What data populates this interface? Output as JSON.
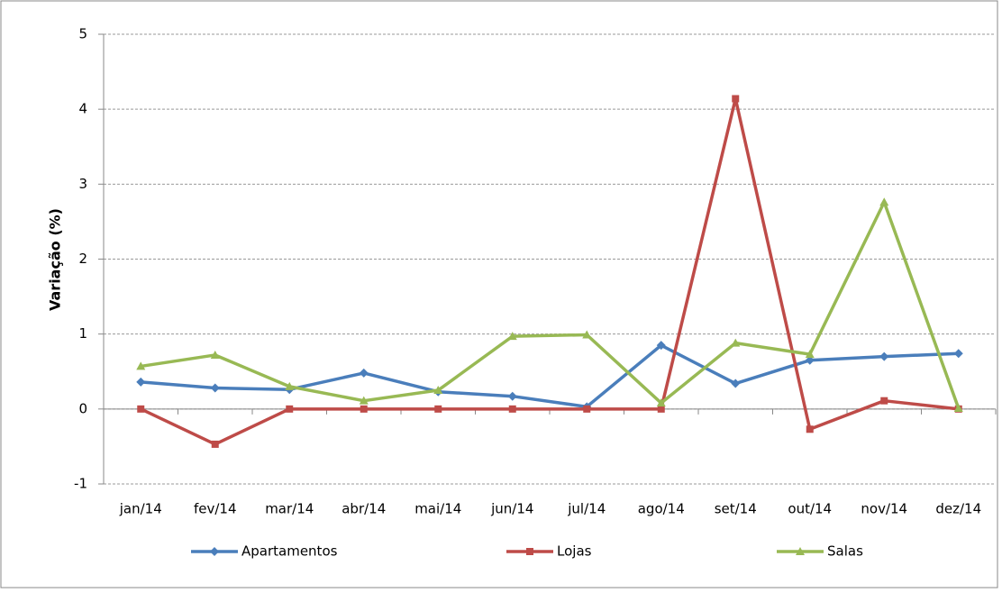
{
  "chart_data": {
    "type": "line",
    "y_label": "Variação (%)",
    "categories": [
      "jan/14",
      "fev/14",
      "mar/14",
      "abr/14",
      "mai/14",
      "jun/14",
      "jul/14",
      "ago/14",
      "set/14",
      "out/14",
      "nov/14",
      "dez/14"
    ],
    "series": [
      {
        "name": "Apartamentos",
        "color": "#4a7ebb",
        "marker": "diamond",
        "values": [
          0.36,
          0.28,
          0.26,
          0.48,
          0.23,
          0.17,
          0.03,
          0.85,
          0.34,
          0.65,
          0.7,
          0.74
        ]
      },
      {
        "name": "Lojas",
        "color": "#be4b48",
        "marker": "square",
        "values": [
          0,
          -0.47,
          0,
          0,
          0,
          0,
          0,
          0,
          4.14,
          -0.27,
          0.11,
          0
        ]
      },
      {
        "name": "Salas",
        "color": "#98b954",
        "marker": "triangle",
        "values": [
          0.57,
          0.72,
          0.3,
          0.11,
          0.25,
          0.97,
          0.99,
          0.08,
          0.88,
          0.73,
          2.76,
          0.01
        ]
      }
    ],
    "ylim": [
      -1,
      5
    ],
    "yticks": [
      -1,
      0,
      1,
      2,
      3,
      4,
      5
    ],
    "grid": true,
    "legend": "bottom"
  }
}
